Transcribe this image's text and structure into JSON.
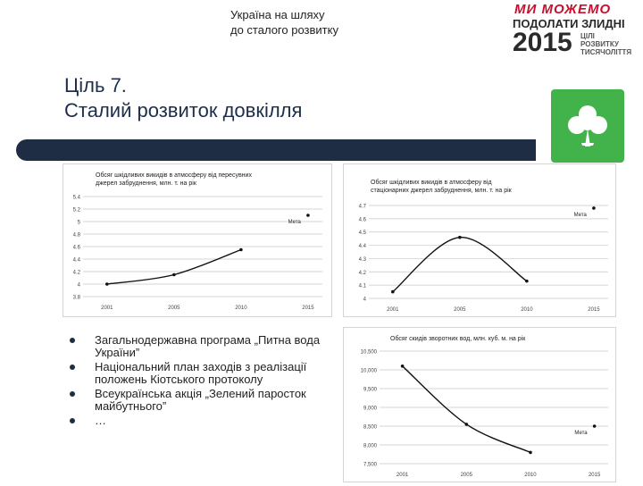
{
  "header": {
    "caption_line1": "Україна на шляху",
    "caption_line2": "до сталого розвитку"
  },
  "logo": {
    "line1": "МИ МОЖЕМО",
    "line2": "ПОДОЛАТИ ЗЛИДНІ",
    "line3": "2015",
    "line4a": "ЦІЛІ",
    "line4b": "РОЗВИТКУ",
    "line4c": "ТИСЯЧОЛІТТЯ"
  },
  "title": {
    "line1": "Ціль 7.",
    "line2": "Сталий розвиток довкілля"
  },
  "icon": {
    "name": "clover-icon",
    "color": "#42b34a"
  },
  "bullets": [
    "Загальнодержавна програма „Питна вода України”",
    "Національний план заходів з реалізації положень Кіотського протоколу",
    "Всеукраїнська акція „Зелений паросток майбутнього”",
    "…"
  ],
  "chart_data": [
    {
      "type": "line",
      "title": "Обсяг шкідливих викидів в атмосферу від пересувних джерел забруднення, млн. т. на рік",
      "x": [
        "2001",
        "2005",
        "2010",
        "2015"
      ],
      "series": [
        {
          "values": [
            4.0,
            4.15,
            4.55,
            null
          ]
        }
      ],
      "target": {
        "x": "2015",
        "value": 5.1,
        "label": "Мета"
      },
      "yticks": [
        "5.4",
        "5.2",
        "5",
        "4.8",
        "4.6",
        "4.4",
        "4.2",
        "4",
        "3.8"
      ],
      "ylim": [
        3.8,
        5.4
      ]
    },
    {
      "type": "line",
      "title": "Обсяг шкідливих викидів в атмосферу від стаціонарних джерел забруднення, млн. т. на рік",
      "x": [
        "2001",
        "2005",
        "2010",
        "2015"
      ],
      "series": [
        {
          "values": [
            4.05,
            4.46,
            4.13,
            null
          ]
        }
      ],
      "target": {
        "x": "2015",
        "value": 4.68,
        "label": "Мета"
      },
      "yticks": [
        "4.7",
        "4.6",
        "4.5",
        "4.4",
        "4.3",
        "4.2",
        "4.1",
        "4"
      ],
      "ylim": [
        4.0,
        4.7
      ]
    },
    {
      "type": "line",
      "title": "Обсяг скидів зворотних вод, млн. куб. м. на рік",
      "x": [
        "2001",
        "2005",
        "2010",
        "2015"
      ],
      "series": [
        {
          "values": [
            10100,
            8550,
            7800,
            null
          ]
        }
      ],
      "target": {
        "x": "2015",
        "value": 8500,
        "label": "Мета"
      },
      "yticks": [
        "10,500",
        "10,000",
        "9,500",
        "9,000",
        "8,500",
        "8,000",
        "7,500"
      ],
      "ylim": [
        7500,
        10500
      ]
    }
  ]
}
